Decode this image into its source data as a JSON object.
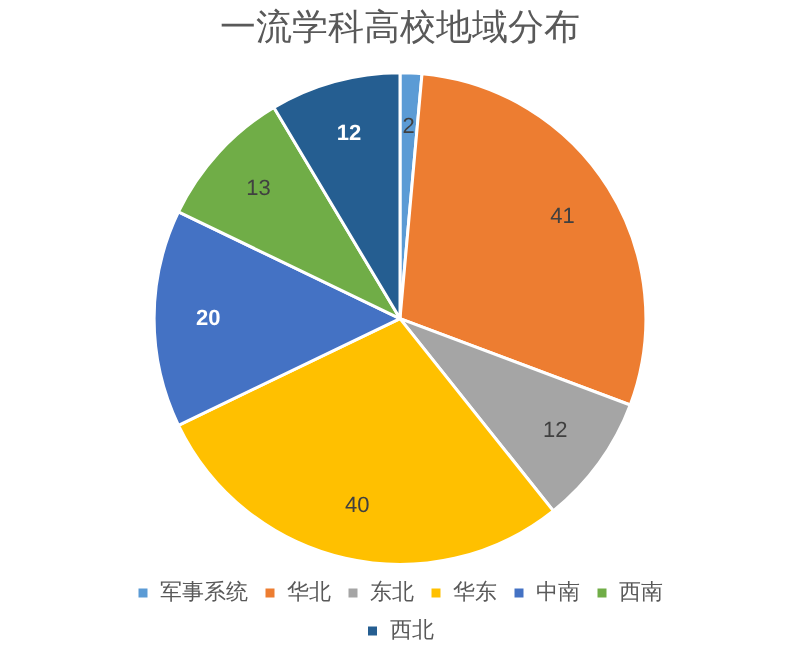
{
  "chart_data": {
    "type": "pie",
    "title": "一流学科高校地域分布",
    "categories": [
      "军事系统",
      "华北",
      "东北",
      "华东",
      "中南",
      "西南",
      "西北"
    ],
    "values": [
      2,
      41,
      12,
      40,
      20,
      13,
      12
    ],
    "colors": [
      "#5b9bd5",
      "#ed7d31",
      "#a5a5a5",
      "#ffc000",
      "#4472c4",
      "#70ad47",
      "#255e91"
    ],
    "data_labels": true,
    "legend": "bottom"
  }
}
